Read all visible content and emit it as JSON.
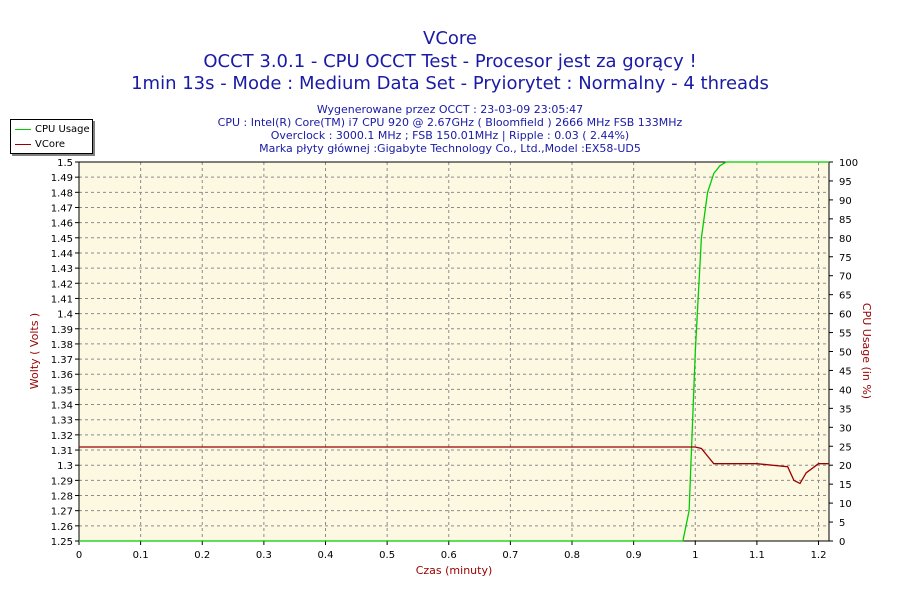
{
  "header": {
    "title": "VCore",
    "subtitle": "OCCT 3.0.1 - CPU OCCT Test - Procesor jest za gorący !",
    "subtitle2": "1min 13s - Mode : Medium Data Set - Pryiorytet : Normalny - 4 threads"
  },
  "info": {
    "generated": "Wygenerowane przez OCCT : 23-03-09 23:05:47",
    "cpu": "CPU : Intel(R) Core(TM) i7 CPU 920 @ 2.67GHz ( Bloomfield ) 2666 MHz FSB 133MHz",
    "overclock": "Overclock : 3000.1 MHz ; FSB 150.01MHz | Ripple : 0.03 ( 2.44%)",
    "motherboard": "Marka płyty głównej :Gigabyte Technology Co., Ltd.,Model :EX58-UD5"
  },
  "legend": {
    "items": [
      "CPU Usage",
      "VCore"
    ]
  },
  "colors": {
    "cpu_usage": "#00cc00",
    "vcore": "#990000",
    "axis_left": "#990000",
    "axis_bottom": "#990000",
    "title": "#1a1aa6",
    "plot_bg": "#fdf8e2",
    "grid": "#8c8c8c"
  },
  "chart_data": {
    "type": "line",
    "grid": true,
    "legend_position": "top-left",
    "xlabel": "Czas (minuty)",
    "ylabel": "Wolty ( Volts )",
    "ylabel_right": "CPU Usage (in %)",
    "xlim": [
      0,
      1.217
    ],
    "ylim": [
      1.25,
      1.5
    ],
    "ylim_right": [
      0,
      100
    ],
    "x_ticks": [
      "0",
      "0.1",
      "0.2",
      "0.3",
      "0.4",
      "0.5",
      "0.6",
      "0.7",
      "0.8",
      "0.9",
      "1",
      "1.1",
      "1.2"
    ],
    "y_ticks": [
      "1.25",
      "1.26",
      "1.27",
      "1.28",
      "1.29",
      "1.3",
      "1.31",
      "1.32",
      "1.33",
      "1.34",
      "1.35",
      "1.36",
      "1.37",
      "1.38",
      "1.39",
      "1.4",
      "1.41",
      "1.42",
      "1.43",
      "1.44",
      "1.45",
      "1.46",
      "1.47",
      "1.48",
      "1.49",
      "1.5"
    ],
    "y_ticks_right": [
      "0",
      "5",
      "10",
      "15",
      "20",
      "25",
      "30",
      "35",
      "40",
      "45",
      "50",
      "55",
      "60",
      "65",
      "70",
      "75",
      "80",
      "85",
      "90",
      "95",
      "100"
    ],
    "series": [
      {
        "name": "CPU Usage",
        "axis": "right",
        "x": [
          0,
          0.98,
          0.99,
          1.0,
          1.01,
          1.02,
          1.03,
          1.04,
          1.05,
          1.1,
          1.12,
          1.2,
          1.217
        ],
        "y": [
          0,
          0,
          8,
          50,
          80,
          92,
          97,
          99,
          100,
          100,
          100,
          100,
          100
        ]
      },
      {
        "name": "VCore",
        "axis": "left",
        "x": [
          0,
          0.98,
          1.0,
          1.01,
          1.02,
          1.03,
          1.05,
          1.1,
          1.15,
          1.16,
          1.17,
          1.18,
          1.2,
          1.217
        ],
        "y": [
          1.312,
          1.312,
          1.312,
          1.311,
          1.306,
          1.301,
          1.301,
          1.301,
          1.299,
          1.29,
          1.288,
          1.295,
          1.301,
          1.301
        ]
      }
    ]
  }
}
